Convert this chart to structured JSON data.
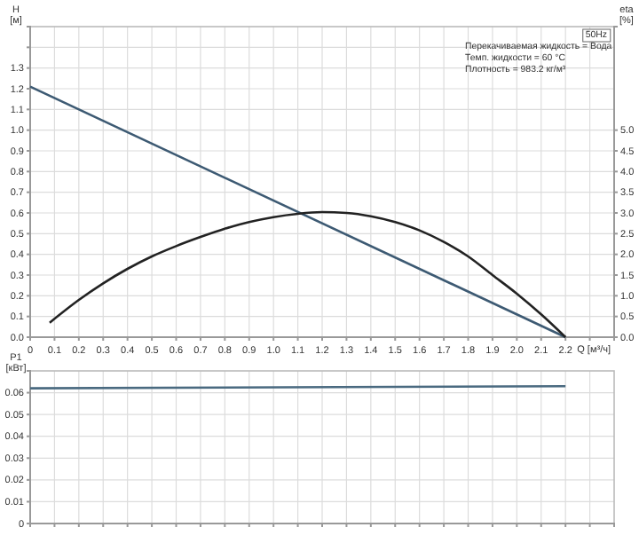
{
  "chart_data": [
    {
      "type": "line",
      "xlabel": "Q [м³/ч]",
      "ylabel": "H [м]",
      "y2label": "eta [%]",
      "xlim": [
        0,
        2.4
      ],
      "ylim": [
        0,
        1.5
      ],
      "y2lim": [
        0,
        7.5
      ],
      "xticks": [
        {
          "value": 0,
          "label": "0"
        },
        0.1,
        0.2,
        0.3,
        0.4,
        0.5,
        0.6,
        0.7,
        0.8,
        0.9,
        {
          "value": 1,
          "label": "1.0"
        },
        1.1,
        1.2,
        1.3,
        1.4,
        1.5,
        1.6,
        1.7,
        1.8,
        1.9,
        {
          "value": 2,
          "label": "2.0"
        },
        2.1,
        2.2,
        {
          "value": 2.3,
          "label": null
        }
      ],
      "yticks": [
        {
          "value": 0,
          "label": "0.0"
        },
        0.1,
        0.2,
        0.3,
        0.4,
        0.5,
        0.6,
        0.7,
        0.8,
        0.9,
        {
          "value": 1,
          "label": "1.0"
        },
        1.1,
        1.2,
        1.3,
        {
          "value": 1.4,
          "label": null
        }
      ],
      "y2ticks": [
        {
          "value": 0,
          "label": "0.0"
        },
        0.5,
        {
          "value": 1,
          "label": "1.0"
        },
        1.5,
        {
          "value": 2,
          "label": "2.0"
        },
        2.5,
        {
          "value": 3,
          "label": "3.0"
        },
        3.5,
        {
          "value": 4,
          "label": "4.0"
        },
        4.5,
        {
          "value": 5,
          "label": "5.0"
        }
      ],
      "grid": true,
      "annotations": [
        "50Hz",
        "Перекачиваемая жидкость = Вода",
        "Темп. жидкости = 60 °C",
        "Плотность = 983.2 кг/м³"
      ],
      "series": [
        {
          "color": "#3d5a73",
          "x": [
            0,
            2.2
          ],
          "values": [
            1.21,
            0
          ]
        },
        {
          "color": "#222222",
          "axis": "y2",
          "x": [
            0.08,
            0.2,
            0.3,
            0.4,
            0.5,
            0.6,
            0.7,
            0.8,
            0.9,
            1.0,
            1.1,
            1.2,
            1.3,
            1.4,
            1.5,
            1.6,
            1.7,
            1.8,
            1.9,
            2.0,
            2.1,
            2.2
          ],
          "values": [
            0.35,
            0.9,
            1.3,
            1.65,
            1.95,
            2.2,
            2.42,
            2.62,
            2.78,
            2.9,
            2.98,
            3.02,
            3.0,
            2.92,
            2.78,
            2.58,
            2.3,
            1.95,
            1.5,
            1.05,
            0.55,
            0
          ]
        }
      ]
    },
    {
      "type": "line",
      "ylabel": "P1 [кВт]",
      "xlim": [
        0,
        2.4
      ],
      "ylim": [
        0,
        0.07
      ],
      "tick_labels": "y",
      "xticks": [
        0,
        0.1,
        0.2,
        0.3,
        0.4,
        0.5,
        0.6,
        0.7,
        0.8,
        0.9,
        1,
        1.1,
        1.2,
        1.3,
        1.4,
        1.5,
        1.6,
        1.7,
        1.8,
        1.9,
        2,
        2.1,
        2.2,
        2.3
      ],
      "yticks": [
        0,
        0.01,
        0.02,
        0.03,
        0.04,
        0.05,
        0.06
      ],
      "grid": true,
      "series": [
        {
          "color": "#4a6a80",
          "x": [
            0,
            2.2
          ],
          "values": [
            0.062,
            0.063
          ]
        }
      ]
    }
  ]
}
